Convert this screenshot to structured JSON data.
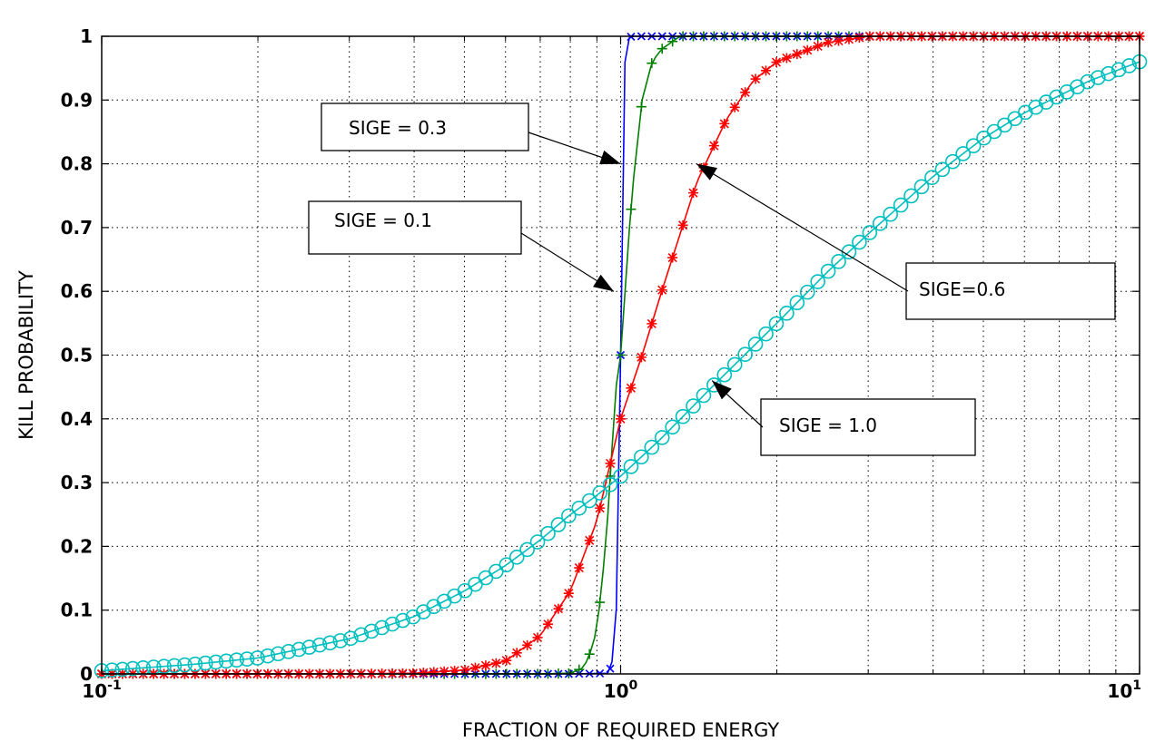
{
  "chart_data": {
    "type": "line",
    "title": "",
    "xlabel": "FRACTION OF REQUIRED ENERGY",
    "ylabel": "KILL PROBABILITY",
    "xscale": "log",
    "xlim": [
      0.1,
      10
    ],
    "ylim": [
      0,
      1
    ],
    "grid": "on (dotted, including minor log ticks)",
    "xticks": [
      {
        "value": 0.1,
        "base": "10",
        "exp": "-1"
      },
      {
        "value": 1,
        "base": "10",
        "exp": "0"
      },
      {
        "value": 10,
        "base": "10",
        "exp": "1"
      }
    ],
    "yticks": [
      {
        "value": 0,
        "label": "0"
      },
      {
        "value": 0.1,
        "label": "0.1"
      },
      {
        "value": 0.2,
        "label": "0.2"
      },
      {
        "value": 0.3,
        "label": "0.3"
      },
      {
        "value": 0.4,
        "label": "0.4"
      },
      {
        "value": 0.5,
        "label": "0.5"
      },
      {
        "value": 0.6,
        "label": "0.6"
      },
      {
        "value": 0.7,
        "label": "0.7"
      },
      {
        "value": 0.8,
        "label": "0.8"
      },
      {
        "value": 0.9,
        "label": "0.9"
      },
      {
        "value": 1,
        "label": "1"
      }
    ],
    "series": [
      {
        "name": "SIGE = 0.1",
        "color": "#0000ff",
        "marker": "x",
        "x": [
          0.1,
          0.2,
          0.4,
          0.6,
          0.8,
          0.95,
          0.97,
          0.98,
          0.99,
          1.0,
          1.01,
          1.02,
          1.03,
          1.05,
          1.1,
          2,
          4,
          10
        ],
        "y": [
          0,
          0,
          0,
          0,
          0,
          0.001,
          0.03,
          0.08,
          0.3,
          0.5,
          0.8,
          0.97,
          0.995,
          1,
          1,
          1,
          1,
          1
        ]
      },
      {
        "name": "SIGE = 0.3",
        "color": "#007f00",
        "marker": "+",
        "x": [
          0.1,
          0.5,
          0.7,
          0.8,
          0.85,
          0.88,
          0.9,
          0.92,
          0.94,
          0.96,
          0.98,
          1.0,
          1.02,
          1.04,
          1.06,
          1.08,
          1.1,
          1.15,
          1.2,
          1.25,
          1.3,
          2,
          10
        ],
        "y": [
          0,
          0,
          0,
          0.001,
          0.01,
          0.04,
          0.07,
          0.14,
          0.22,
          0.34,
          0.45,
          0.5,
          0.6,
          0.7,
          0.78,
          0.84,
          0.9,
          0.96,
          0.98,
          0.99,
          1,
          1,
          1
        ]
      },
      {
        "name": "SIGE=0.6",
        "color": "#ff0000",
        "marker": "*",
        "x": [
          0.1,
          0.3,
          0.4,
          0.5,
          0.6,
          0.7,
          0.8,
          0.9,
          1.0,
          1.1,
          1.2,
          1.4,
          1.6,
          1.8,
          2.0,
          2.5,
          3.0,
          4.0,
          10
        ],
        "y": [
          0,
          0,
          0.001,
          0.006,
          0.02,
          0.06,
          0.13,
          0.24,
          0.4,
          0.5,
          0.6,
          0.77,
          0.87,
          0.93,
          0.96,
          0.99,
          1.0,
          1.0,
          1.0
        ]
      },
      {
        "name": "SIGE = 1.0",
        "color": "#00bfbf",
        "marker": "o",
        "x": [
          0.1,
          0.15,
          0.2,
          0.3,
          0.4,
          0.5,
          0.6,
          0.7,
          0.8,
          0.9,
          1.0,
          1.2,
          1.5,
          2.0,
          2.5,
          3.0,
          4.0,
          5.0,
          6.0,
          8.0,
          10.0
        ],
        "y": [
          0.005,
          0.015,
          0.025,
          0.055,
          0.09,
          0.13,
          0.17,
          0.21,
          0.25,
          0.28,
          0.31,
          0.37,
          0.45,
          0.55,
          0.63,
          0.69,
          0.78,
          0.84,
          0.88,
          0.93,
          0.96
        ]
      }
    ],
    "annotations": [
      {
        "text": "SIGE = 0.3",
        "points_to": {
          "x": 1.0,
          "y": 0.8
        }
      },
      {
        "text": "SIGE = 0.1",
        "points_to": {
          "x": 0.97,
          "y": 0.6
        }
      },
      {
        "text": "SIGE=0.6",
        "points_to": {
          "x": 1.4,
          "y": 0.8
        }
      },
      {
        "text": "SIGE = 1.0",
        "points_to": {
          "x": 1.5,
          "y": 0.46
        }
      }
    ]
  }
}
